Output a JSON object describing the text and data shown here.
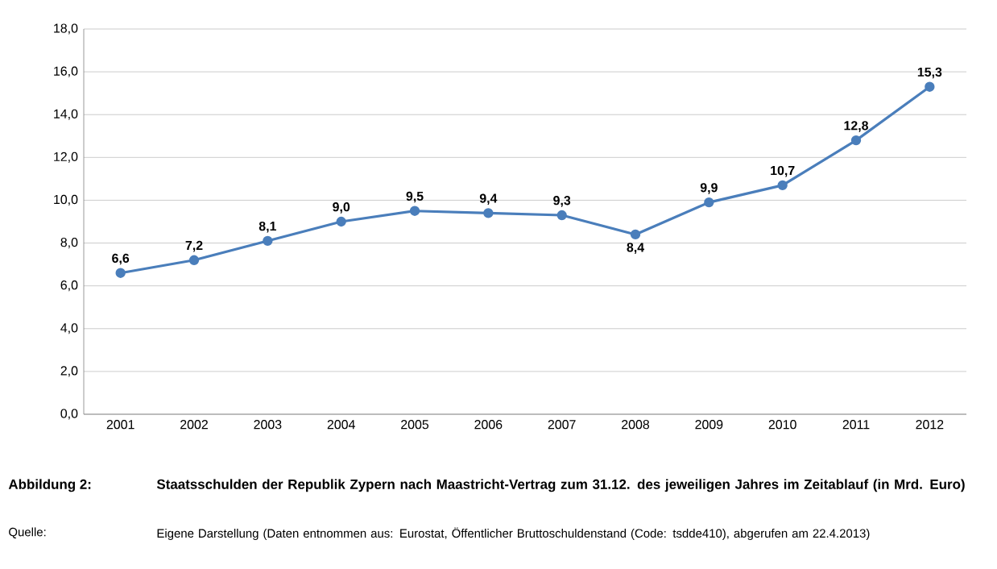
{
  "chart_data": {
    "type": "line",
    "title": "Staatsschulden der Republik Zypern nach Maastricht-Vertrag zum 31.12. des jeweiligen Jahres im Zeitablauf (in Mrd. Euro)",
    "categories": [
      "2001",
      "2002",
      "2003",
      "2004",
      "2005",
      "2006",
      "2007",
      "2008",
      "2009",
      "2010",
      "2011",
      "2012"
    ],
    "values": [
      6.6,
      7.2,
      8.1,
      9.0,
      9.5,
      9.4,
      9.3,
      8.4,
      9.9,
      10.7,
      12.8,
      15.3
    ],
    "value_labels": [
      "6,6",
      "7,2",
      "8,1",
      "9,0",
      "9,5",
      "9,4",
      "9,3",
      "8,4",
      "9,9",
      "10,7",
      "12,8",
      "15,3"
    ],
    "color": "#4a7ebb",
    "marker": "circle",
    "line_style": "solid",
    "grid": "y",
    "ylim": [
      0,
      18
    ],
    "yticks": [
      {
        "value": 0,
        "label": "0,0"
      },
      {
        "value": 2,
        "label": "2,0"
      },
      {
        "value": 4,
        "label": "4,0"
      },
      {
        "value": 6,
        "label": "6,0"
      },
      {
        "value": 8,
        "label": "8,0"
      },
      {
        "value": 10,
        "label": "10,0"
      },
      {
        "value": 12,
        "label": "12,0"
      },
      {
        "value": 14,
        "label": "14,0"
      },
      {
        "value": 16,
        "label": "16,0"
      },
      {
        "value": 18,
        "label": "18,0"
      }
    ],
    "annotations": [
      "Abbildung 2:",
      "Quelle:",
      "Eigene Darstellung (Daten entnommen aus: Eurostat, Öffentlicher Bruttoschuldenstand (Code: tsdde410), abgerufen am 22.4.2013)"
    ]
  }
}
